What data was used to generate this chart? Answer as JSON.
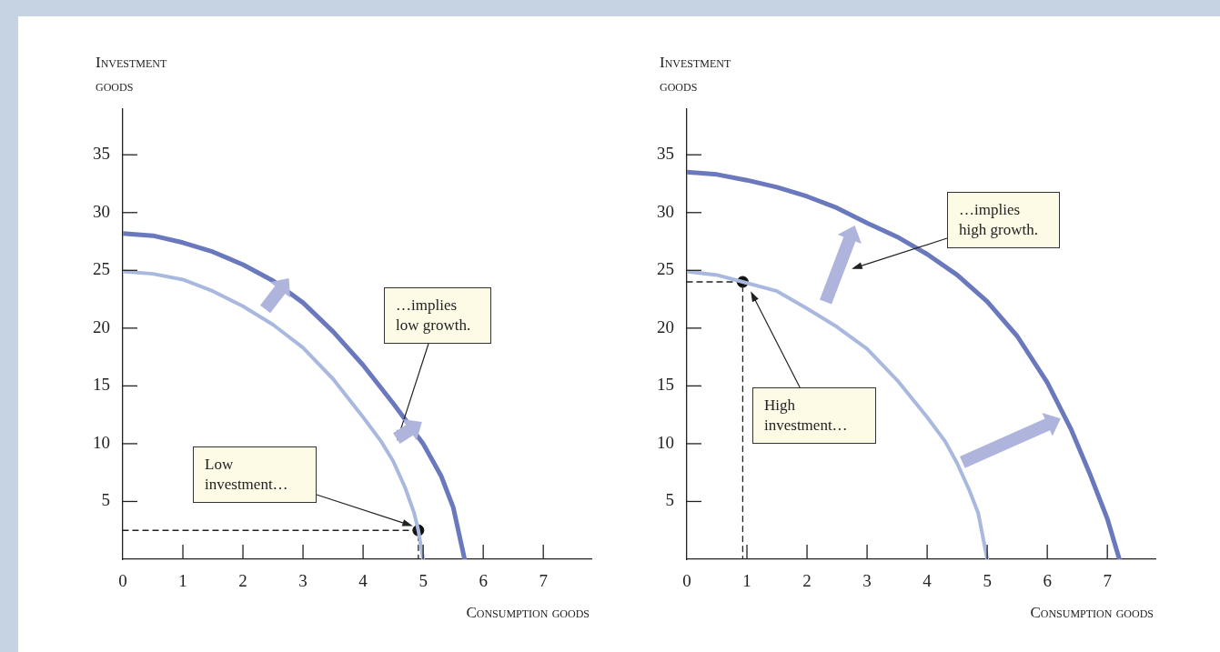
{
  "chart_data": [
    {
      "type": "line",
      "xlabel": "Consumption goods",
      "ylabel": "Investment goods",
      "xlim": [
        0,
        7.8
      ],
      "xticks": [
        0,
        1,
        2,
        3,
        4,
        5,
        6,
        7
      ],
      "ylim": [
        0,
        39
      ],
      "yticks": [
        5,
        10,
        15,
        20,
        25,
        30,
        35
      ],
      "series": [
        {
          "color": "#a9b8de",
          "x": [
            0,
            0.5,
            1,
            1.5,
            2,
            2.5,
            3,
            3.5,
            4,
            4.3,
            4.5,
            4.7,
            4.85,
            4.92,
            5
          ],
          "values": [
            24.9,
            24.7,
            24.2,
            23.2,
            21.9,
            20.3,
            18.3,
            15.6,
            12.3,
            10.2,
            8.5,
            6.2,
            4,
            2.5,
            0
          ]
        },
        {
          "color": "#6a78bd",
          "x": [
            0,
            0.5,
            1,
            1.5,
            2,
            2.5,
            3,
            3.5,
            4,
            4.5,
            5,
            5.3,
            5.5,
            5.69
          ],
          "values": [
            28.2,
            28,
            27.4,
            26.6,
            25.5,
            24.1,
            22.2,
            19.7,
            16.8,
            13.5,
            10,
            7.2,
            4.5,
            0
          ]
        },
        {
          "type": "line",
          "color": "#222222",
          "line_style": "dashed",
          "x": [
            0,
            4.92,
            4.92
          ],
          "values": [
            2.5,
            2.5,
            0
          ]
        },
        {
          "type": "scatter",
          "color": "#111111",
          "marker": "circle",
          "x": [
            4.92
          ],
          "values": [
            2.5
          ]
        }
      ],
      "annotations": [
        "Low investment…",
        "…implies low growth."
      ]
    },
    {
      "type": "line",
      "xlabel": "Consumption goods",
      "ylabel": "Investment goods",
      "xlim": [
        0,
        7.8
      ],
      "xticks": [
        0,
        1,
        2,
        3,
        4,
        5,
        6,
        7
      ],
      "ylim": [
        0,
        39
      ],
      "yticks": [
        5,
        10,
        15,
        20,
        25,
        30,
        35
      ],
      "series": [
        {
          "color": "#a9b8de",
          "x": [
            0,
            0.5,
            0.93,
            1.5,
            2,
            2.5,
            3,
            3.5,
            4,
            4.3,
            4.5,
            4.7,
            4.85,
            5
          ],
          "values": [
            24.9,
            24.6,
            24,
            23.2,
            21.7,
            20.1,
            18.2,
            15.5,
            12.3,
            10.2,
            8.3,
            6,
            4,
            0
          ]
        },
        {
          "color": "#6a78bd",
          "x": [
            0,
            0.5,
            1,
            1.5,
            2,
            2.5,
            3,
            3.5,
            4,
            4.5,
            5,
            5.5,
            6,
            6.4,
            6.7,
            7,
            7.2
          ],
          "values": [
            33.5,
            33.3,
            32.8,
            32.2,
            31.4,
            30.4,
            29.1,
            27.9,
            26.4,
            24.6,
            22.3,
            19.3,
            15.3,
            11.2,
            7.5,
            3.5,
            0
          ]
        },
        {
          "type": "line",
          "color": "#222222",
          "line_style": "dashed",
          "x": [
            0,
            0.93,
            0.93
          ],
          "values": [
            24,
            24,
            0
          ]
        },
        {
          "type": "scatter",
          "color": "#111111",
          "marker": "circle",
          "x": [
            0.93
          ],
          "values": [
            24
          ]
        }
      ],
      "annotations": [
        "…implies high growth.",
        "High investment…"
      ]
    }
  ]
}
